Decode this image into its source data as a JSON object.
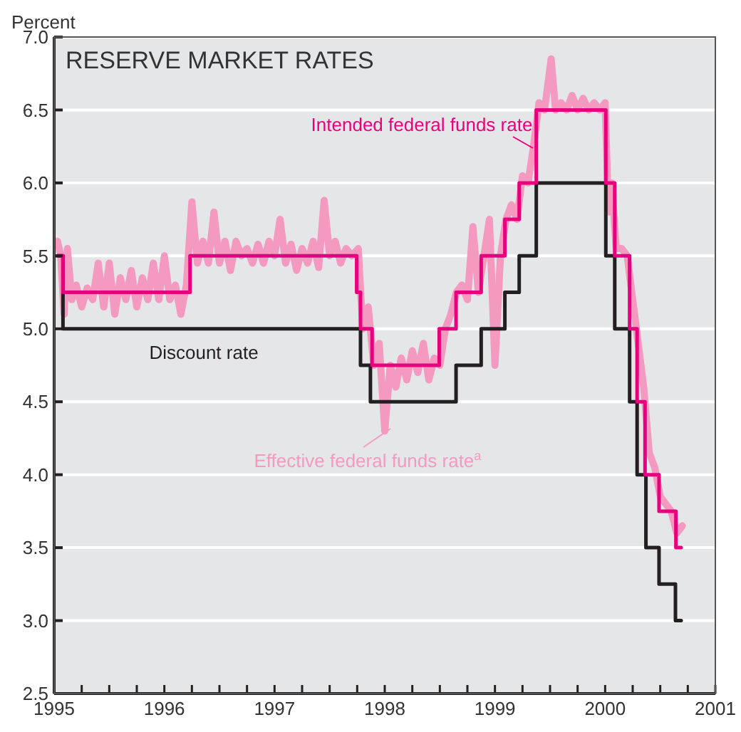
{
  "chart_data": {
    "type": "line",
    "title": "RESERVE MARKET RATES",
    "ylabel": "Percent",
    "grid": "y",
    "xlim": [
      1995,
      2001
    ],
    "xticks": [
      1995,
      {
        "value": 1995.25,
        "label": null
      },
      {
        "value": 1995.5,
        "label": null
      },
      {
        "value": 1995.75,
        "label": null
      },
      1996,
      {
        "value": 1996.25,
        "label": null
      },
      {
        "value": 1996.5,
        "label": null
      },
      {
        "value": 1996.75,
        "label": null
      },
      1997,
      {
        "value": 1997.25,
        "label": null
      },
      {
        "value": 1997.5,
        "label": null
      },
      {
        "value": 1997.75,
        "label": null
      },
      1998,
      {
        "value": 1998.25,
        "label": null
      },
      {
        "value": 1998.5,
        "label": null
      },
      {
        "value": 1998.75,
        "label": null
      },
      1999,
      {
        "value": 1999.25,
        "label": null
      },
      {
        "value": 1999.5,
        "label": null
      },
      {
        "value": 1999.75,
        "label": null
      },
      2000,
      {
        "value": 2000.25,
        "label": null
      },
      {
        "value": 2000.5,
        "label": null
      },
      {
        "value": 2000.75,
        "label": null
      },
      2001
    ],
    "ylim": [
      2.5,
      7.0
    ],
    "yticks": [
      {
        "value": 2.5,
        "label": "2.5"
      },
      {
        "value": 3,
        "label": "3.0"
      },
      {
        "value": 3.5,
        "label": "3.5"
      },
      {
        "value": 4,
        "label": "4.0"
      },
      {
        "value": 4.5,
        "label": "4.5"
      },
      {
        "value": 5,
        "label": "5.0"
      },
      {
        "value": 5.5,
        "label": "5.5"
      },
      {
        "value": 6,
        "label": "6.0"
      },
      {
        "value": 6.5,
        "label": "6.5"
      },
      {
        "value": 7,
        "label": "7.0"
      }
    ],
    "series": [
      {
        "name": "Effective federal funds rate$^{a}$",
        "color": "#f49ac1",
        "x": [
          1995.03,
          1995.06,
          1995.09,
          1995.12,
          1995.16,
          1995.2,
          1995.25,
          1995.3,
          1995.35,
          1995.4,
          1995.45,
          1995.5,
          1995.55,
          1995.6,
          1995.65,
          1995.7,
          1995.75,
          1995.8,
          1995.85,
          1995.9,
          1995.95,
          1996.0,
          1996.05,
          1996.1,
          1996.15,
          1996.2,
          1996.25,
          1996.3,
          1996.35,
          1996.4,
          1996.45,
          1996.5,
          1996.55,
          1996.6,
          1996.65,
          1996.7,
          1996.75,
          1996.8,
          1996.85,
          1996.9,
          1996.95,
          1997.0,
          1997.05,
          1997.1,
          1997.15,
          1997.2,
          1997.25,
          1997.3,
          1997.35,
          1997.4,
          1997.45,
          1997.5,
          1997.55,
          1997.6,
          1997.65,
          1997.7,
          1997.76,
          1997.8,
          1997.85,
          1997.9,
          1997.95,
          1998.0,
          1998.05,
          1998.1,
          1998.15,
          1998.2,
          1998.25,
          1998.3,
          1998.35,
          1998.4,
          1998.45,
          1998.5,
          1998.55,
          1998.6,
          1998.65,
          1998.7,
          1998.75,
          1998.8,
          1998.85,
          1998.9,
          1998.95,
          1999.0,
          1999.05,
          1999.1,
          1999.15,
          1999.2,
          1999.25,
          1999.3,
          1999.35,
          1999.4,
          1999.45,
          1999.51,
          1999.55,
          1999.6,
          1999.65,
          1999.7,
          1999.75,
          1999.8,
          1999.85,
          1999.9,
          1999.95,
          2000.0,
          2000.03,
          2000.06,
          2000.1,
          2000.15,
          2000.2,
          2000.25,
          2000.3,
          2000.35,
          2000.4,
          2000.45,
          2000.5,
          2000.55,
          2000.6,
          2000.65,
          2000.7
        ],
        "values": [
          5.6,
          5.5,
          5.1,
          5.55,
          5.2,
          5.3,
          5.15,
          5.28,
          5.2,
          5.45,
          5.15,
          5.45,
          5.1,
          5.35,
          5.2,
          5.4,
          5.15,
          5.35,
          5.2,
          5.45,
          5.2,
          5.5,
          5.2,
          5.3,
          5.1,
          5.3,
          5.87,
          5.45,
          5.6,
          5.45,
          5.8,
          5.45,
          5.6,
          5.4,
          5.6,
          5.5,
          5.55,
          5.45,
          5.58,
          5.45,
          5.6,
          5.5,
          5.75,
          5.45,
          5.58,
          5.4,
          5.55,
          5.45,
          5.6,
          5.42,
          5.88,
          5.5,
          5.6,
          5.45,
          5.55,
          5.5,
          5.55,
          5.0,
          5.15,
          4.75,
          4.9,
          4.3,
          4.75,
          4.6,
          4.8,
          4.65,
          4.85,
          4.7,
          4.9,
          4.65,
          4.8,
          4.75,
          5.0,
          5.1,
          5.25,
          5.3,
          5.2,
          5.7,
          5.25,
          5.5,
          5.75,
          4.75,
          5.5,
          5.75,
          5.85,
          5.75,
          6.05,
          6.0,
          6.25,
          6.55,
          6.5,
          6.85,
          6.5,
          6.55,
          6.5,
          6.6,
          6.5,
          6.58,
          6.5,
          6.55,
          6.5,
          6.55,
          5.8,
          6.0,
          5.55,
          5.55,
          5.5,
          5.2,
          4.9,
          4.6,
          4.15,
          4.05,
          3.85,
          3.8,
          3.75,
          3.6,
          3.65
        ]
      },
      {
        "name": "Discount rate",
        "type": "step",
        "color": "#231f20",
        "x": [
          1995.03,
          1995.08,
          1997.78,
          1997.87,
          1998.647,
          1998.875,
          1999.09,
          1999.22,
          1999.375,
          2000.006,
          2000.087,
          2000.222,
          2000.29,
          2000.37,
          2000.489,
          2000.638,
          2000.69
        ],
        "values": [
          5.5,
          5.0,
          4.75,
          4.5,
          4.75,
          5.0,
          5.25,
          5.5,
          6.0,
          5.5,
          5.0,
          4.5,
          4.0,
          3.5,
          3.25,
          3.0,
          3.0
        ]
      },
      {
        "name": "Intended federal funds rate",
        "type": "step",
        "color": "#e6007e",
        "x": [
          1995.03,
          1995.08,
          1996.233,
          1997.745,
          1997.78,
          1997.885,
          1998.494,
          1998.647,
          1998.875,
          1999.09,
          1999.22,
          1999.375,
          2000.006,
          2000.087,
          2000.222,
          2000.29,
          2000.362,
          2000.489,
          2000.642,
          2000.69
        ],
        "values": [
          5.5,
          5.25,
          5.5,
          5.25,
          5.0,
          4.75,
          5.0,
          5.25,
          5.5,
          5.75,
          6.0,
          6.5,
          6.0,
          5.5,
          5.0,
          4.5,
          4.0,
          3.75,
          3.5,
          3.5
        ]
      }
    ]
  }
}
